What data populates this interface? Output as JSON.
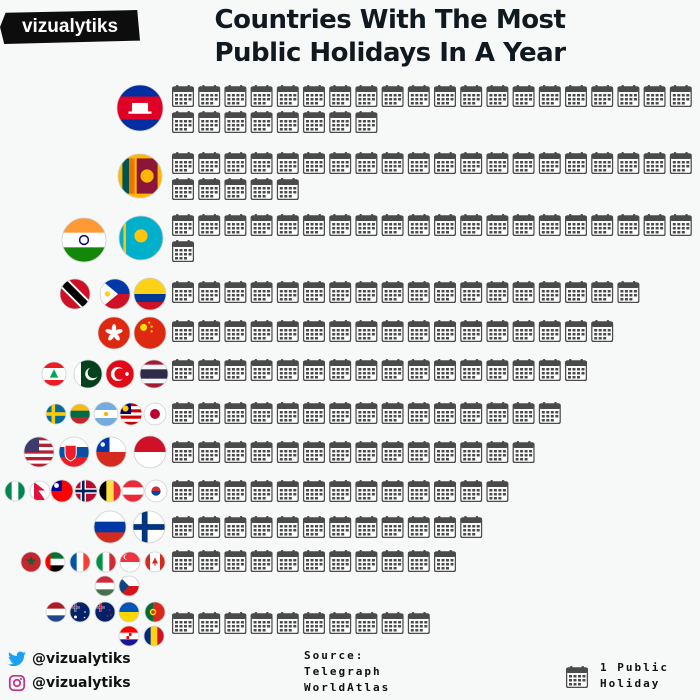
{
  "brand": "vizualytiks",
  "title_line1": "Countries With The Most",
  "title_line2": "Public Holidays In A Year",
  "chart_data": {
    "type": "pictograph",
    "unit": "1 Public Holiday",
    "rows": [
      {
        "value": 28,
        "flags": [
          "cambodia"
        ]
      },
      {
        "value": 25,
        "flags": [
          "sri-lanka"
        ]
      },
      {
        "value": 21,
        "flags": [
          "india",
          "kazakhstan"
        ]
      },
      {
        "value": 18,
        "flags": [
          "trinidad-and-tobago",
          "philippines",
          "colombia"
        ]
      },
      {
        "value": 17,
        "flags": [
          "hong-kong",
          "china"
        ]
      },
      {
        "value": 16,
        "flags": [
          "lebanon",
          "pakistan",
          "turkey",
          "thailand"
        ]
      },
      {
        "value": 15,
        "flags": [
          "sweden",
          "lithuania",
          "argentina",
          "malaysia",
          "japan"
        ]
      },
      {
        "value": 14,
        "flags": [
          "united-states",
          "slovakia",
          "chile",
          "indonesia"
        ]
      },
      {
        "value": 13,
        "flags": [
          "nigeria",
          "nepal",
          "taiwan",
          "norway",
          "belgium",
          "austria",
          "south-korea"
        ]
      },
      {
        "value": 12,
        "flags": [
          "russia",
          "finland"
        ]
      },
      {
        "value": 11,
        "flags": [
          "morocco",
          "uae",
          "france",
          "italy",
          "singapore",
          "canada",
          "hungary",
          "czech-republic"
        ]
      },
      {
        "value": 10,
        "flags": [
          "netherlands",
          "australia",
          "new-zealand",
          "ukraine",
          "portugal",
          "croatia",
          "romania"
        ]
      }
    ]
  },
  "social": {
    "twitter_handle": "@vizualytiks",
    "instagram_handle": "@vizualytiks"
  },
  "source": {
    "label": "Source:",
    "lines": [
      "Telegraph",
      "WorldAtlas"
    ]
  },
  "legend": {
    "line1": "1 Public",
    "line2": "Holiday"
  },
  "colors": {
    "background": "#f7f8f8",
    "icon_fill": "#4a4a4a",
    "brand_bg": "#0d0d0d",
    "twitter": "#1da1f2",
    "instagram": "#c13584"
  }
}
